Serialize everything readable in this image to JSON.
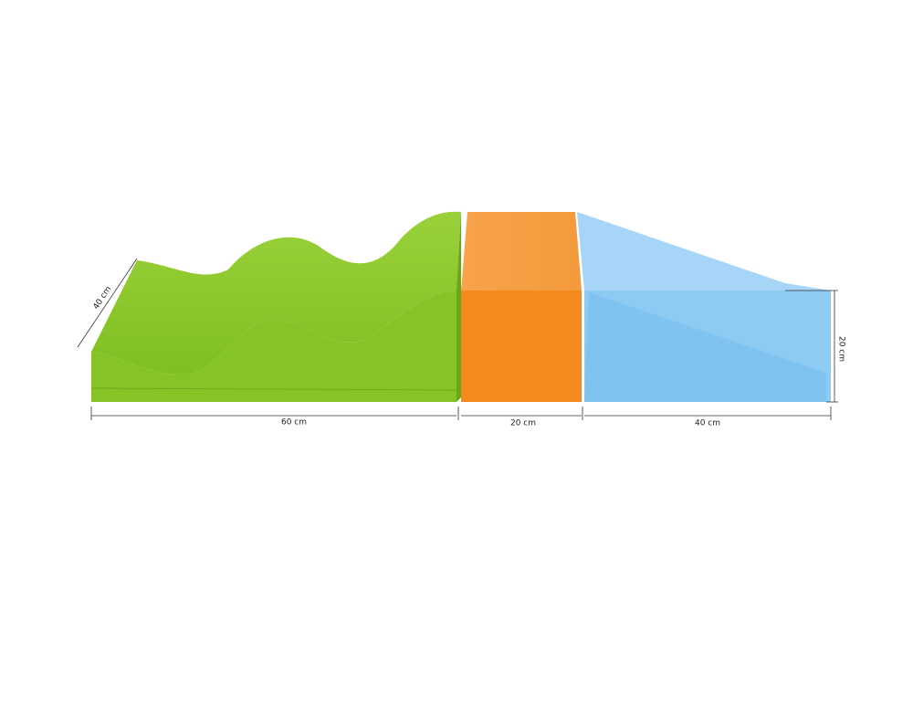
{
  "dimensions": {
    "depth": "40 cm",
    "green_width": "60 cm",
    "orange_width": "20 cm",
    "blue_width": "40 cm",
    "height": "20 cm"
  }
}
